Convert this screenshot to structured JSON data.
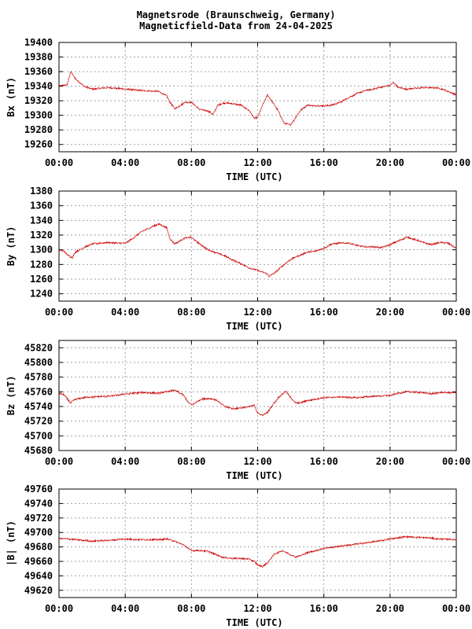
{
  "title": {
    "line1": "Magnetsrode (Braunschweig, Germany)",
    "line2": "Magneticfield-Data from 24-04-2025"
  },
  "colors": {
    "trace": "#cc0000",
    "grid": "#a0a0a0",
    "frame": "#000000"
  },
  "chart_data": [
    {
      "type": "line",
      "ylabel": "Bx (nT)",
      "xlabel": "TIME (UTC)",
      "xlim": [
        0,
        24
      ],
      "xticks": [
        "00:00",
        "04:00",
        "08:00",
        "12:00",
        "16:00",
        "20:00",
        "00:00"
      ],
      "ylim": [
        19250,
        19400
      ],
      "yticks": [
        19260,
        19280,
        19300,
        19320,
        19340,
        19360,
        19380,
        19400
      ],
      "grid": true,
      "series": [
        {
          "x": [
            0,
            0.5,
            0.7,
            1.0,
            1.5,
            2.0,
            3.0,
            4.0,
            5.0,
            6.0,
            6.5,
            6.7,
            7.0,
            7.3,
            7.6,
            8.0,
            8.5,
            9.0,
            9.3,
            9.6,
            10.0,
            10.5,
            11.0,
            11.5,
            11.8,
            12.0,
            12.3,
            12.6,
            12.9,
            13.2,
            13.6,
            14.0,
            14.3,
            14.6,
            15.0,
            15.5,
            16.0,
            16.5,
            17.0,
            17.5,
            18.0,
            18.5,
            19.0,
            19.5,
            20.0,
            20.2,
            20.5,
            21.0,
            21.5,
            22.0,
            22.5,
            23.0,
            23.5,
            24.0
          ],
          "y": [
            19340,
            19342,
            19360,
            19350,
            19340,
            19336,
            19338,
            19336,
            19334,
            19333,
            19327,
            19318,
            19309,
            19313,
            19318,
            19318,
            19308,
            19306,
            19301,
            19314,
            19317,
            19316,
            19314,
            19306,
            19296,
            19297,
            19314,
            19328,
            19318,
            19308,
            19289,
            19287,
            19297,
            19307,
            19314,
            19313,
            19313,
            19314,
            19318,
            19324,
            19330,
            19334,
            19336,
            19339,
            19341,
            19345,
            19338,
            19336,
            19337,
            19338,
            19338,
            19337,
            19333,
            19328
          ]
        }
      ]
    },
    {
      "type": "line",
      "ylabel": "By (nT)",
      "xlabel": "TIME (UTC)",
      "xlim": [
        0,
        24
      ],
      "xticks": [
        "00:00",
        "04:00",
        "08:00",
        "12:00",
        "16:00",
        "20:00",
        "00:00"
      ],
      "ylim": [
        1230,
        1380
      ],
      "yticks": [
        1240,
        1260,
        1280,
        1300,
        1320,
        1340,
        1360,
        1380
      ],
      "grid": true,
      "series": [
        {
          "x": [
            0,
            0.3,
            0.5,
            0.8,
            1.0,
            1.5,
            2.0,
            3.0,
            3.5,
            4.0,
            4.5,
            5.0,
            5.5,
            6.0,
            6.5,
            6.7,
            7.0,
            7.3,
            7.6,
            8.0,
            8.5,
            9.0,
            9.5,
            10.0,
            10.5,
            11.0,
            11.5,
            12.0,
            12.5,
            12.7,
            13.0,
            13.5,
            14.0,
            14.5,
            15.0,
            15.5,
            16.0,
            16.5,
            17.0,
            17.5,
            18.0,
            18.5,
            19.0,
            19.5,
            20.0,
            20.5,
            21.0,
            21.5,
            22.0,
            22.5,
            23.0,
            23.5,
            24.0
          ],
          "y": [
            1300,
            1298,
            1293,
            1289,
            1297,
            1303,
            1308,
            1310,
            1309,
            1309,
            1316,
            1325,
            1330,
            1335,
            1330,
            1315,
            1308,
            1312,
            1316,
            1317,
            1308,
            1300,
            1296,
            1292,
            1286,
            1281,
            1275,
            1272,
            1268,
            1264,
            1268,
            1278,
            1287,
            1292,
            1297,
            1298,
            1302,
            1308,
            1309,
            1309,
            1306,
            1304,
            1304,
            1303,
            1307,
            1312,
            1317,
            1314,
            1310,
            1307,
            1310,
            1309,
            1302
          ]
        }
      ]
    },
    {
      "type": "line",
      "ylabel": "Bz (nT)",
      "xlabel": "TIME (UTC)",
      "xlim": [
        0,
        24
      ],
      "xticks": [
        "00:00",
        "04:00",
        "08:00",
        "12:00",
        "16:00",
        "20:00",
        "00:00"
      ],
      "ylim": [
        45680,
        45830
      ],
      "yticks": [
        45680,
        45700,
        45720,
        45740,
        45760,
        45780,
        45800,
        45820
      ],
      "grid": true,
      "series": [
        {
          "x": [
            0,
            0.3,
            0.7,
            1.0,
            1.5,
            2.0,
            3.0,
            4.0,
            5.0,
            6.0,
            6.5,
            7.0,
            7.5,
            7.8,
            8.0,
            8.3,
            8.6,
            9.0,
            9.5,
            10.0,
            10.5,
            11.0,
            11.5,
            11.8,
            12.0,
            12.3,
            12.6,
            13.0,
            13.3,
            13.7,
            14.0,
            14.3,
            14.6,
            15.0,
            16.0,
            17.0,
            18.0,
            19.0,
            20.0,
            20.5,
            21.0,
            22.0,
            22.5,
            23.0,
            24.0
          ],
          "y": [
            45758,
            45756,
            45745,
            45750,
            45752,
            45753,
            45754,
            45757,
            45759,
            45758,
            45760,
            45762,
            45756,
            45746,
            45742,
            45746,
            45750,
            45751,
            45749,
            45740,
            45737,
            45738,
            45740,
            45742,
            45731,
            45728,
            45732,
            45745,
            45753,
            45761,
            45752,
            45745,
            45745,
            45748,
            45752,
            45753,
            45752,
            45754,
            45755,
            45758,
            45760,
            45759,
            45757,
            45759,
            45759
          ]
        }
      ]
    },
    {
      "type": "line",
      "ylabel": "|B| (nT)",
      "xlabel": "TIME (UTC)",
      "xlim": [
        0,
        24
      ],
      "xticks": [
        "00:00",
        "04:00",
        "08:00",
        "12:00",
        "16:00",
        "20:00",
        "00:00"
      ],
      "ylim": [
        49610,
        49760
      ],
      "yticks": [
        49620,
        49640,
        49660,
        49680,
        49700,
        49720,
        49740,
        49760
      ],
      "grid": true,
      "series": [
        {
          "x": [
            0,
            0.5,
            1.0,
            1.5,
            2.0,
            3.0,
            4.0,
            5.0,
            6.0,
            6.5,
            7.0,
            7.5,
            8.0,
            8.5,
            9.0,
            9.5,
            10.0,
            10.5,
            11.0,
            11.5,
            11.8,
            12.0,
            12.3,
            12.6,
            13.0,
            13.5,
            14.0,
            14.3,
            14.6,
            15.0,
            16.0,
            17.0,
            18.0,
            19.0,
            20.0,
            21.0,
            22.0,
            23.0,
            24.0
          ],
          "y": [
            49692,
            49691,
            49690,
            49689,
            49688,
            49689,
            49691,
            49690,
            49690,
            49691,
            49688,
            49683,
            49675,
            49675,
            49674,
            49669,
            49665,
            49664,
            49664,
            49663,
            49660,
            49655,
            49653,
            49658,
            49670,
            49675,
            49669,
            49666,
            49668,
            49672,
            49678,
            49681,
            49684,
            49687,
            49691,
            49694,
            49693,
            49691,
            49690
          ]
        }
      ]
    }
  ]
}
